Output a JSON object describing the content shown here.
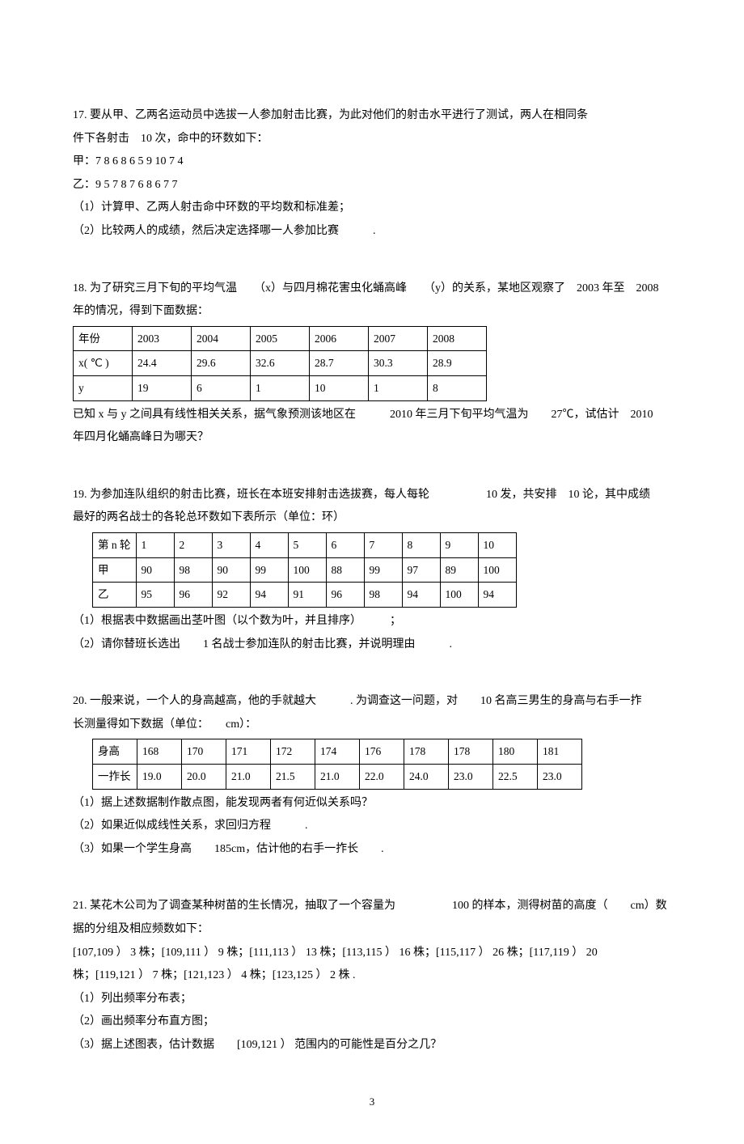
{
  "p17": {
    "l1": "17. 要从甲、乙两名运动员中选拔一人参加射击比赛，为此对他们的射击水平进行了测试，两人在相同条",
    "l2": "件下各射击　10 次，命中的环数如下：",
    "l3": "甲：7 8 6 8 6 5 9 10 7 4",
    "l4": "乙：9 5 7 8 7 6 8 6 7 7",
    "l5": "（1）计算甲、乙两人射击命中环数的平均数和标准差；",
    "l6": "（2）比较两人的成绩，然后决定选择哪一人参加比赛　　　."
  },
  "p18": {
    "l1": "18. 为了研究三月下旬的平均气温　　（x）与四月棉花害虫化蛹高峰　　（y）的关系，某地区观察了　2003 年至　2008",
    "l2": "年的情况，得到下面数据：",
    "table": {
      "r0": [
        "年份",
        "2003",
        "2004",
        "2005",
        "2006",
        "2007",
        "2008"
      ],
      "r1": [
        "x( ℃ )",
        "24.4",
        "29.6",
        "32.6",
        "28.7",
        "30.3",
        "28.9"
      ],
      "r2": [
        "y",
        "19",
        "6",
        "1",
        "10",
        "1",
        "8"
      ]
    },
    "l3": "已知 x 与 y 之间具有线性相关关系，据气象预测该地区在　　　2010 年三月下旬平均气温为　　27℃，试估计　2010",
    "l4": "年四月化蛹高峰日为哪天？"
  },
  "p19": {
    "l1": "19. 为参加连队组织的射击比赛，班长在本班安排射击选拔赛，每人每轮　　　　　10 发，共安排　10 论，其中成绩",
    "l2": "最好的两名战士的各轮总环数如下表所示（单位：环）",
    "table": {
      "r0": [
        "第 n 轮",
        "1",
        "2",
        "3",
        "4",
        "5",
        "6",
        "7",
        "8",
        "9",
        "10"
      ],
      "r1": [
        "甲",
        "90",
        "98",
        "90",
        "99",
        "100",
        "88",
        "99",
        "97",
        "89",
        "100"
      ],
      "r2": [
        "乙",
        "95",
        "96",
        "92",
        "94",
        "91",
        "96",
        "98",
        "94",
        "100",
        "94"
      ]
    },
    "l3": "（1）根据表中数据画出茎叶图（以个数为叶，并且排序）　　　；",
    "l4": "（2）请你替班长选出　　1 名战士参加连队的射击比赛，并说明理由　　　."
  },
  "p20": {
    "l1": "20. 一般来说，一个人的身高越高，他的手就越大　　　. 为调查这一问题，对　　10 名高三男生的身高与右手一拃",
    "l2": "长测量得如下数据（单位：　　cm）：",
    "table": {
      "r0": [
        "身高",
        "168",
        "170",
        "171",
        "172",
        "174",
        "176",
        "178",
        "178",
        "180",
        "181"
      ],
      "r1": [
        "一拃长",
        "19.0",
        "20.0",
        "21.0",
        "21.5",
        "21.0",
        "22.0",
        "24.0",
        "23.0",
        "22.5",
        "23.0"
      ]
    },
    "l3": "（1）据上述数据制作散点图，能发现两者有何近似关系吗？",
    "l4": "（2）如果近似成线性关系，求回归方程　　　.",
    "l5": "（3）如果一个学生身高　　185cm，估计他的右手一拃长　　."
  },
  "p21": {
    "l1": "21. 某花木公司为了调查某种树苗的生长情况，抽取了一个容量为　　　　　100 的样本，测得树苗的高度（　　cm）数",
    "l2": "据的分组及相应频数如下：",
    "l3": "[107,109 ） 3 株；[109,111 ） 9 株；[111,113 ） 13 株；[113,115 ） 16 株；[115,117 ） 26 株；[117,119 ） 20",
    "l4": "株；[119,121 ） 7 株；[121,123 ） 4 株；[123,125 ） 2 株 .",
    "l5": "（1）列出频率分布表；",
    "l6": "（2）画出频率分布直方图；",
    "l7": "（3）据上述图表，估计数据　　[109,121 ） 范围内的可能性是百分之几？"
  },
  "pagenum": "3"
}
